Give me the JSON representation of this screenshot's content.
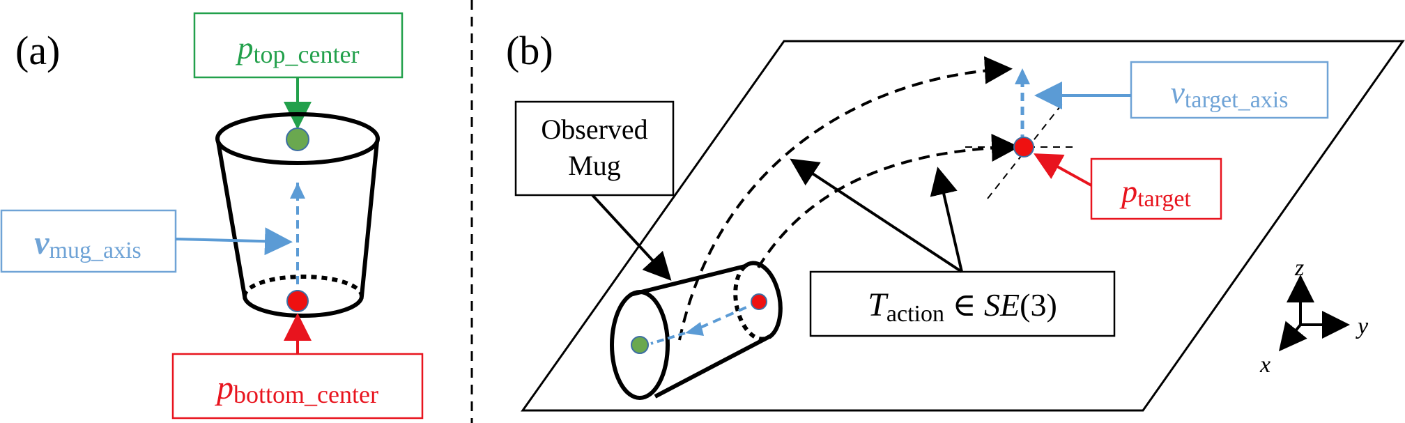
{
  "panels": {
    "a": {
      "label": "(a)"
    },
    "b": {
      "label": "(b)"
    }
  },
  "labels": {
    "top_center": {
      "base": "p",
      "sub": "top_center"
    },
    "bottom_center": {
      "base": "p",
      "sub": "bottom_center"
    },
    "mug_axis": {
      "base": "v",
      "sub": "mug_axis"
    },
    "target_axis": {
      "base": "v",
      "sub": "target_axis"
    },
    "target": {
      "base": "p",
      "sub": "target"
    },
    "observed_mug": {
      "line1": "Observed",
      "line2": "Mug"
    },
    "action": {
      "base": "T",
      "sub": "action",
      "rel": " ∈ ",
      "group": "SE",
      "arg": "(3)"
    }
  },
  "axes": {
    "x": "x",
    "y": "y",
    "z": "z"
  },
  "colors": {
    "green": "#22a04b",
    "red": "#e8141e",
    "blue": "#6fa3d6",
    "point_green": "#6aa84f",
    "point_red": "#ee1111",
    "black": "#000000"
  }
}
